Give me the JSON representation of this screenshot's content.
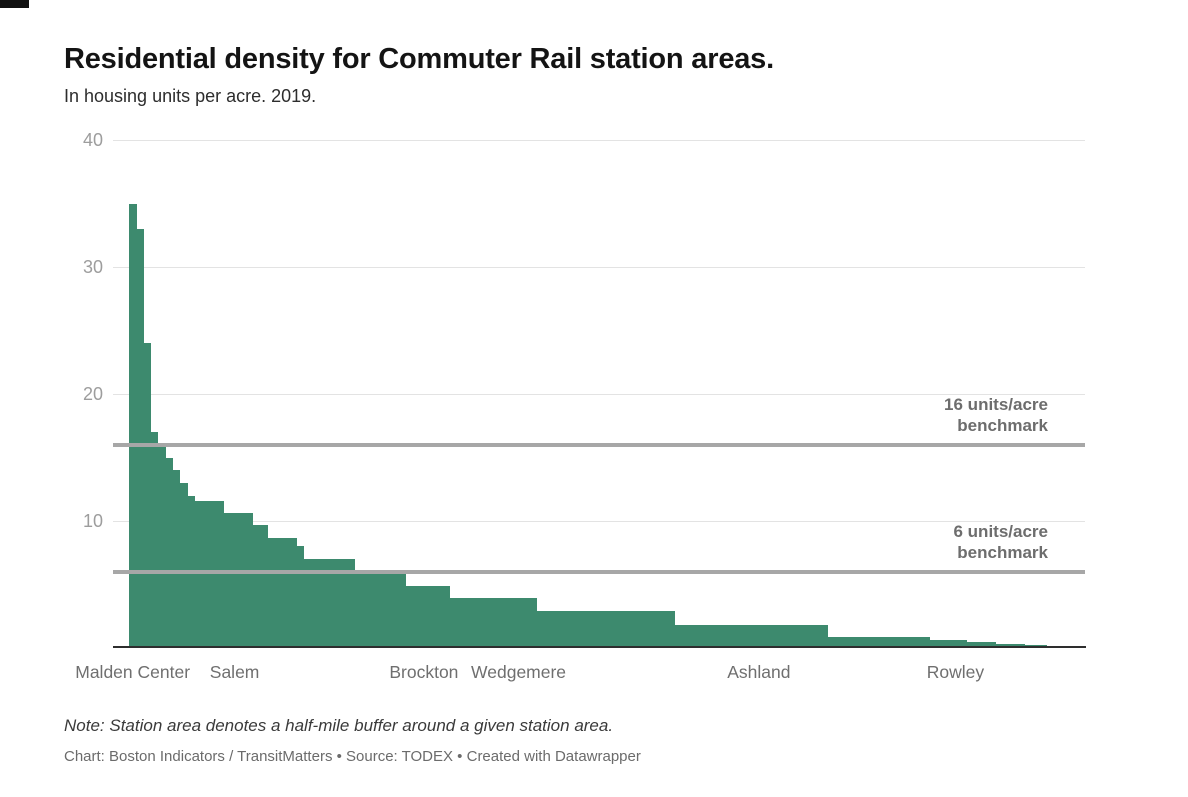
{
  "header": {
    "title": "Residential density for Commuter Rail station areas.",
    "subtitle": "In housing units per acre. 2019."
  },
  "chart_data": {
    "type": "bar",
    "title": "Residential density for Commuter Rail station areas.",
    "subtitle": "In housing units per acre. 2019.",
    "unit": "housing units per acre",
    "year": "2019",
    "ylim": [
      0,
      40
    ],
    "yticks": [
      40,
      30,
      20,
      10
    ],
    "grid": true,
    "bar_color": "#3d8a6e",
    "gridline_color": "#e3e3e3",
    "benchmark_color": "#a7a7a7",
    "axis_color": "#2e2e2e",
    "values": [
      35,
      33,
      24,
      17,
      16,
      15,
      14,
      13,
      12,
      11.6,
      11.6,
      11.6,
      11.6,
      10.6,
      10.6,
      10.6,
      10.6,
      9.7,
      9.7,
      8.7,
      8.7,
      8.7,
      8.7,
      8,
      7,
      7,
      7,
      7,
      7,
      7,
      7,
      6,
      6,
      6,
      6,
      6,
      6,
      6,
      4.9,
      4.9,
      4.9,
      4.9,
      4.9,
      4.9,
      3.9,
      3.9,
      3.9,
      3.9,
      3.9,
      3.9,
      3.9,
      3.9,
      3.9,
      3.9,
      3.9,
      3.9,
      2.9,
      2.9,
      2.9,
      2.9,
      2.9,
      2.9,
      2.9,
      2.9,
      2.9,
      2.9,
      2.9,
      2.9,
      2.9,
      2.9,
      2.9,
      2.9,
      2.9,
      2.9,
      2.9,
      1.8,
      1.8,
      1.8,
      1.8,
      1.8,
      1.8,
      1.8,
      1.8,
      1.8,
      1.8,
      1.8,
      1.8,
      1.8,
      1.8,
      1.8,
      1.8,
      1.8,
      1.8,
      1.8,
      1.8,
      1.8,
      0.9,
      0.9,
      0.9,
      0.9,
      0.9,
      0.9,
      0.9,
      0.9,
      0.9,
      0.9,
      0.9,
      0.9,
      0.9,
      0.9,
      0.65,
      0.65,
      0.65,
      0.65,
      0.65,
      0.5,
      0.5,
      0.5,
      0.5,
      0.35,
      0.35,
      0.35,
      0.35,
      0.2,
      0.2,
      0.2,
      0.1,
      0.1
    ],
    "x_tick_labels": [
      {
        "label": "Malden Center",
        "bar_index": 1
      },
      {
        "label": "Salem",
        "bar_index": 15
      },
      {
        "label": "Brockton",
        "bar_index": 41
      },
      {
        "label": "Wedgemere",
        "bar_index": 54
      },
      {
        "label": "Ashland",
        "bar_index": 87
      },
      {
        "label": "Rowley",
        "bar_index": 114
      }
    ],
    "benchmarks": [
      {
        "value": 16,
        "label_line1": "16 units/acre",
        "label_line2": "benchmark"
      },
      {
        "value": 6,
        "label_line1": "6 units/acre",
        "label_line2": "benchmark"
      }
    ]
  },
  "footer": {
    "note": "Note: Station area denotes a half-mile buffer around a given station area.",
    "credit": "Chart: Boston Indicators / TransitMatters • Source: TODEX • Created with Datawrapper"
  }
}
